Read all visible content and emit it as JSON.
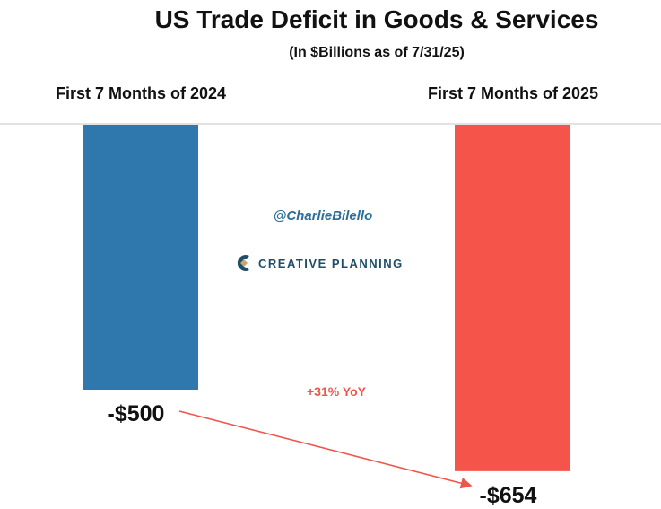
{
  "chart_data": {
    "type": "bar",
    "title": "US Trade Deficit in Goods & Services",
    "subtitle": "(In $Billions as of 7/31/25)",
    "categories": [
      "First 7 Months of 2024",
      "First 7 Months of 2025"
    ],
    "values": [
      -500,
      -654
    ],
    "value_labels": [
      "-$500",
      "-$654"
    ],
    "colors": [
      "#2e78ad",
      "#f4544a"
    ],
    "annotation": "+31% YoY",
    "annotation_color": "#f0554a",
    "ylim": [
      -700,
      0
    ],
    "xlabel": "",
    "ylabel": ""
  },
  "watermark": {
    "handle": "@CharlieBilello",
    "logo": "CREATIVE PLANNING"
  }
}
